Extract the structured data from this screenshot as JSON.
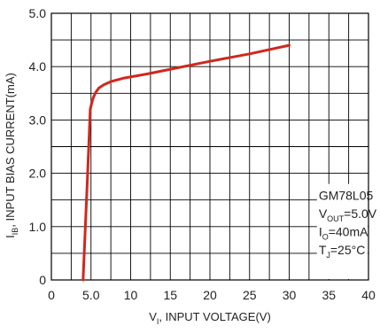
{
  "chart_data": {
    "type": "line",
    "title": "",
    "xlabel": {
      "main": "V",
      "sub": "I",
      "rest": ", INPUT VOLTAGE(V)"
    },
    "ylabel": {
      "main": "I",
      "sub": "IB",
      "rest": ", INPUT BIAS CURRENT(mA)"
    },
    "xlim": [
      0,
      40
    ],
    "ylim": [
      0,
      5
    ],
    "grid": true,
    "x_ticks": [
      {
        "value": 0,
        "label": "0"
      },
      {
        "value": 5,
        "label": "5.0"
      },
      {
        "value": 10,
        "label": "10"
      },
      {
        "value": 15,
        "label": "15"
      },
      {
        "value": 20,
        "label": "20"
      },
      {
        "value": 25,
        "label": "25"
      },
      {
        "value": 30,
        "label": "30"
      },
      {
        "value": 35,
        "label": "35"
      },
      {
        "value": 40,
        "label": "40"
      }
    ],
    "y_ticks": [
      {
        "value": 0,
        "label": "0"
      },
      {
        "value": 1,
        "label": "1.0"
      },
      {
        "value": 2,
        "label": "2.0"
      },
      {
        "value": 3,
        "label": "3.0"
      },
      {
        "value": 4,
        "label": "4.0"
      },
      {
        "value": 5,
        "label": "5.0"
      }
    ],
    "series": [
      {
        "color": "#d0281e",
        "x": [
          4.0,
          4.3,
          4.6,
          4.9,
          5.1,
          5.3,
          5.6,
          6.0,
          6.6,
          7.5,
          9.0,
          12.0,
          16.0,
          20.0,
          25.0,
          30.0
        ],
        "y": [
          0.0,
          1.05,
          2.1,
          3.2,
          3.32,
          3.42,
          3.52,
          3.6,
          3.66,
          3.72,
          3.78,
          3.86,
          3.98,
          4.1,
          4.24,
          4.4
        ]
      }
    ],
    "annotation": {
      "lines": [
        {
          "main": "GM78L05",
          "sub": "",
          "rest": ""
        },
        {
          "main": "V",
          "sub": "OUT",
          "rest": "=5.0V"
        },
        {
          "main": "I",
          "sub": "O",
          "rest": "=40mA"
        },
        {
          "main": "T",
          "sub": "J",
          "rest": "=25°C"
        }
      ]
    }
  }
}
